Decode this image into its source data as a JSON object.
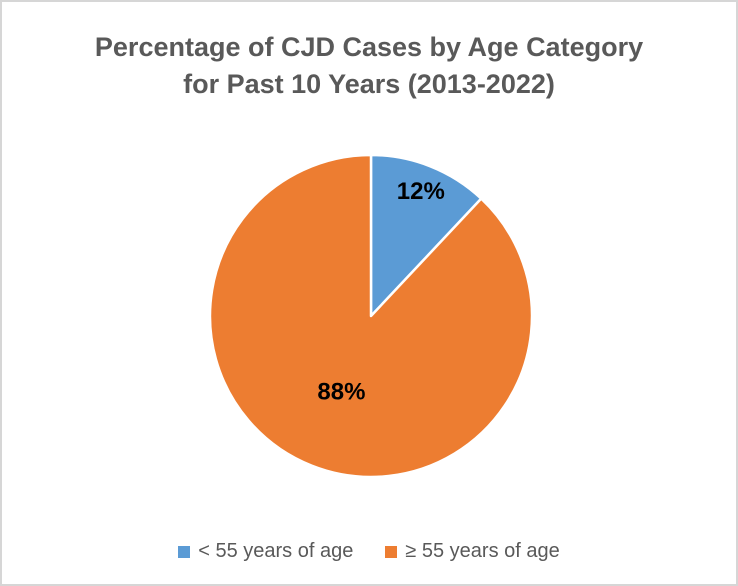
{
  "window": {
    "background": "#ffffff",
    "border_color": "#d6d6d6"
  },
  "chart_data": {
    "type": "pie",
    "title": "Percentage of CJD Cases by Age Category for Past 10 Years (2013-2022)",
    "title_lines": [
      "Percentage of CJD Cases by Age Category",
      "for Past 10 Years (2013-2022)"
    ],
    "categories": [
      "< 55 years of age",
      "≥ 55 years of age"
    ],
    "values": [
      12,
      88
    ],
    "data_labels": [
      "12%",
      "88%"
    ],
    "slice_colors": [
      "#5B9BD5",
      "#ED7D31"
    ],
    "start_angle_deg": 0,
    "direction": "clockwise",
    "legend_position": "bottom",
    "title_color": "#595959",
    "legend_text_color": "#595959",
    "data_label_color": "#000000"
  },
  "legend": {
    "items": [
      {
        "label": "< 55 years of age",
        "color": "#5B9BD5"
      },
      {
        "label": "≥ 55 years of age",
        "color": "#ED7D31"
      }
    ]
  }
}
